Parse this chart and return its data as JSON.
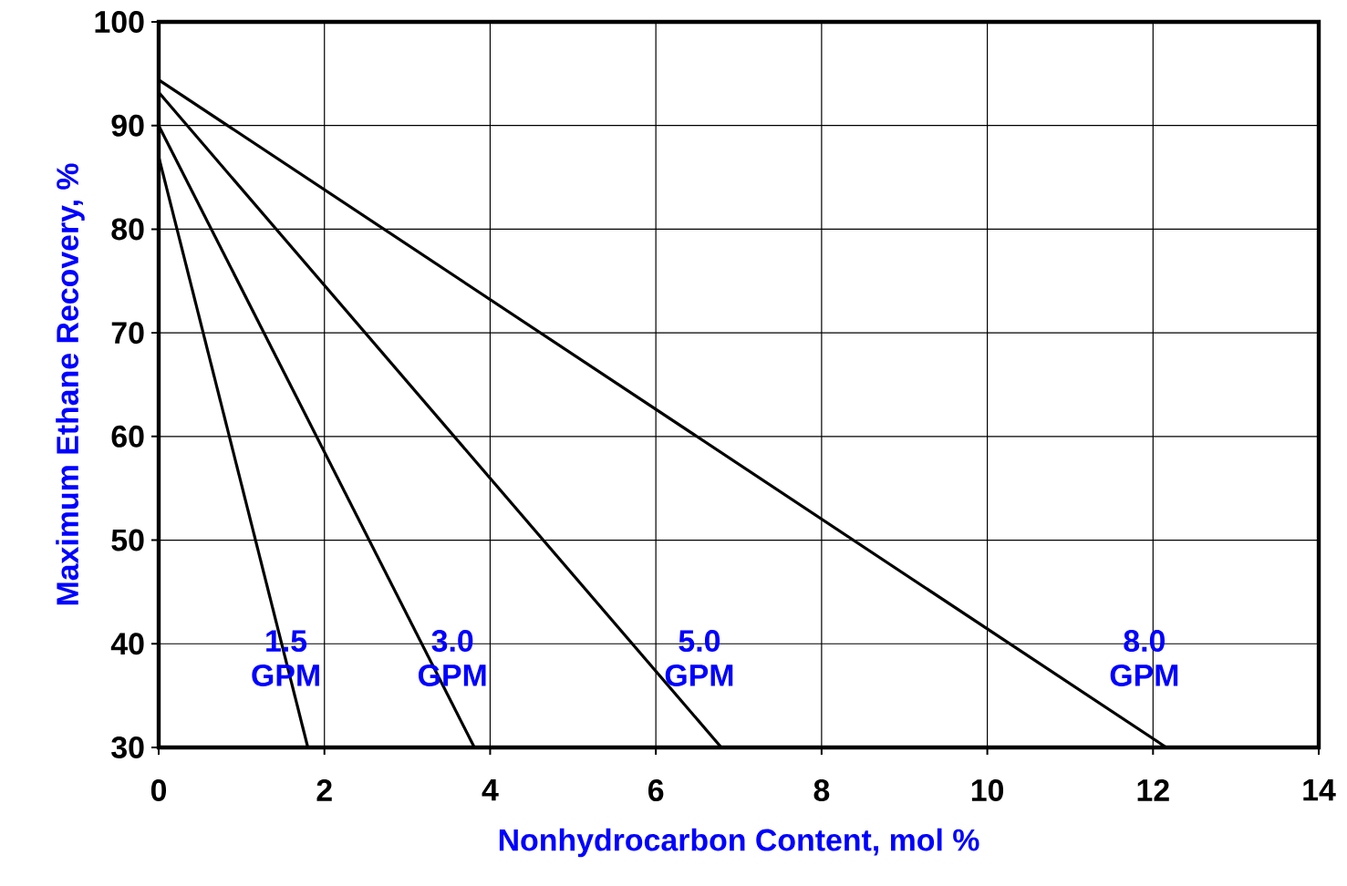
{
  "chart_data": {
    "type": "line",
    "xlabel": "Nonhydrocarbon Content, mol %",
    "ylabel": "Maximum Ethane Recovery, %",
    "xlim": [
      0,
      14
    ],
    "xticks": [
      0,
      2,
      4,
      6,
      8,
      10,
      12,
      14
    ],
    "ylim": [
      30,
      100
    ],
    "yticks": [
      30,
      40,
      50,
      60,
      70,
      80,
      90,
      100
    ],
    "grid": true,
    "marker": "none",
    "line_style": "solid",
    "series": [
      {
        "color": "#000000",
        "x": [
          0,
          1.8
        ],
        "values": [
          87,
          30
        ]
      },
      {
        "color": "#000000",
        "x": [
          0,
          3.81
        ],
        "values": [
          90,
          30
        ]
      },
      {
        "color": "#000000",
        "x": [
          0,
          6.79
        ],
        "values": [
          93.2,
          30
        ]
      },
      {
        "color": "#000000",
        "x": [
          0,
          12.16
        ],
        "values": [
          94.4,
          30
        ]
      }
    ],
    "annotations": [
      "1.5 GPM",
      "3.0 GPM",
      "5.0 GPM",
      "8.0 GPM"
    ]
  }
}
